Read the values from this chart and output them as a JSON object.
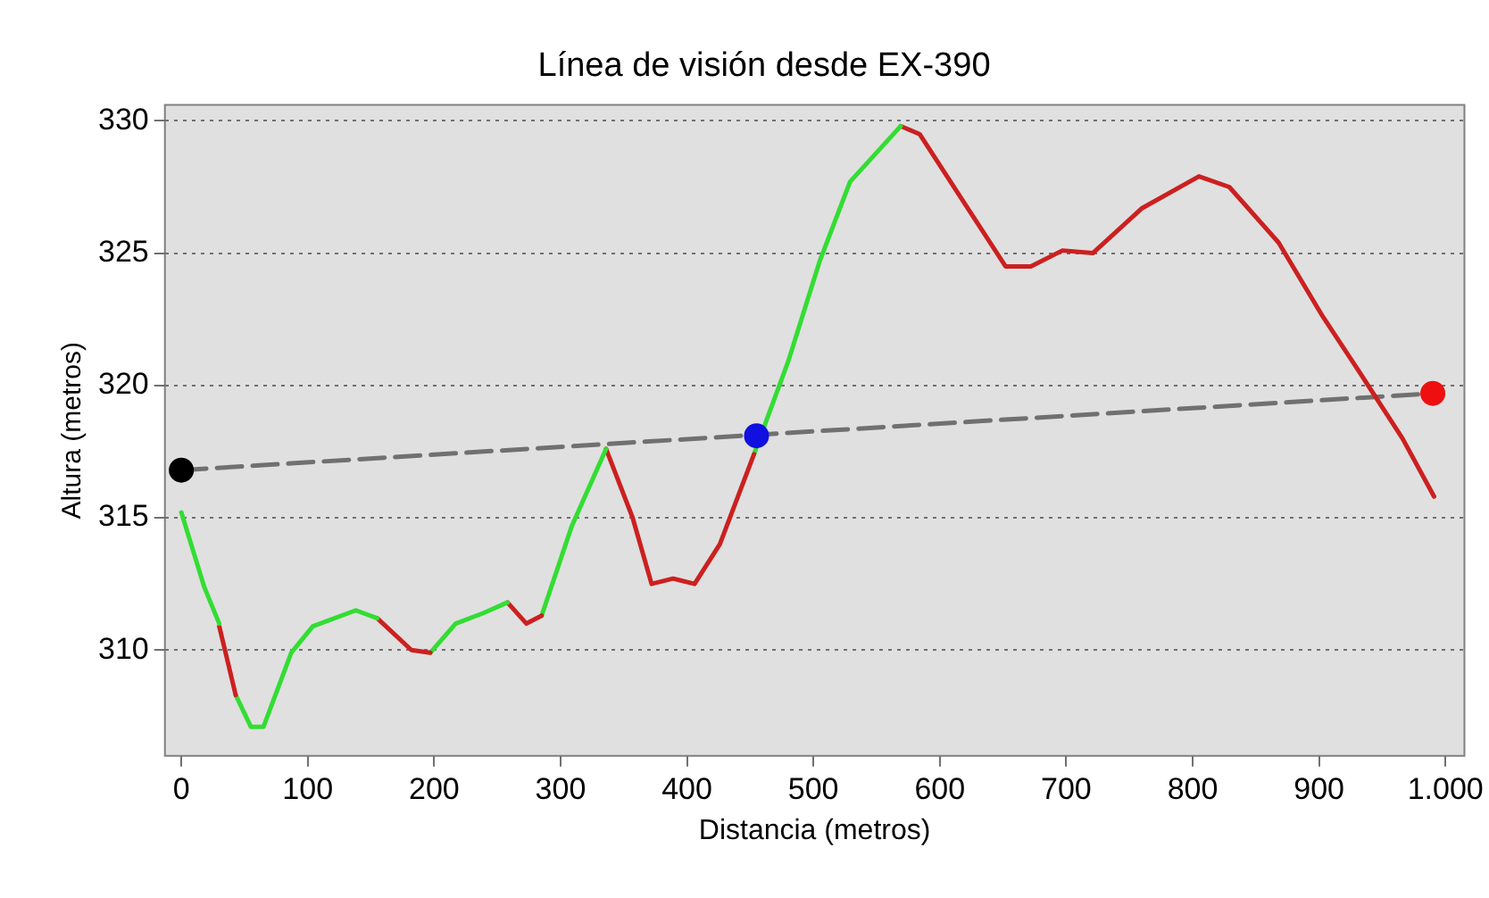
{
  "chart_data": {
    "type": "line",
    "title": "Línea de visión desde EX-390",
    "xlabel": "Distancia (metros)",
    "ylabel": "Altura (metros)",
    "xlim": [
      -13,
      1015
    ],
    "ylim": [
      306,
      330.6
    ],
    "xticks": [
      0,
      100,
      200,
      300,
      400,
      500,
      600,
      700,
      800,
      900,
      {
        "value": 1000,
        "label": "1.000"
      }
    ],
    "yticks": [
      310,
      315,
      320,
      325,
      330
    ],
    "grid": "y",
    "legend": false,
    "series": [
      {
        "type": "line",
        "color": "#33dd33",
        "marker": "none",
        "x": [
          0,
          18,
          30
        ],
        "values": [
          315.2,
          312.4,
          311.0
        ]
      },
      {
        "type": "line",
        "color": "#cc2020",
        "marker": "none",
        "x": [
          30,
          43
        ],
        "values": [
          310.9,
          308.3
        ]
      },
      {
        "type": "line",
        "color": "#33dd33",
        "marker": "none",
        "x": [
          43,
          55,
          65,
          87,
          104,
          138,
          155
        ],
        "values": [
          308.3,
          307.1,
          307.1,
          309.9,
          310.9,
          311.5,
          311.2
        ]
      },
      {
        "type": "line",
        "color": "#cc2020",
        "marker": "none",
        "x": [
          155,
          182,
          197
        ],
        "values": [
          311.2,
          310.0,
          309.9
        ]
      },
      {
        "type": "line",
        "color": "#33dd33",
        "marker": "none",
        "x": [
          197,
          217,
          239,
          258
        ],
        "values": [
          309.9,
          311.0,
          311.4,
          311.8
        ]
      },
      {
        "type": "line",
        "color": "#cc2020",
        "marker": "none",
        "x": [
          258,
          273,
          285
        ],
        "values": [
          311.8,
          311.0,
          311.3
        ]
      },
      {
        "type": "line",
        "color": "#33dd33",
        "marker": "none",
        "x": [
          285,
          309,
          336
        ],
        "values": [
          311.3,
          314.7,
          317.6
        ]
      },
      {
        "type": "line",
        "color": "#cc2020",
        "marker": "none",
        "x": [
          336,
          357,
          372,
          389,
          406,
          426,
          453
        ],
        "values": [
          317.6,
          315.0,
          312.5,
          312.7,
          312.5,
          314.0,
          317.4
        ]
      },
      {
        "type": "line",
        "color": "#33dd33",
        "marker": "none",
        "x": [
          453,
          480,
          505,
          529,
          569
        ],
        "values": [
          317.4,
          320.9,
          324.7,
          327.7,
          329.8
        ]
      },
      {
        "type": "line",
        "color": "#cc2020",
        "marker": "none",
        "x": [
          569,
          584,
          618,
          652,
          672,
          697,
          721,
          760,
          805,
          829,
          868,
          903,
          932,
          966,
          991
        ],
        "values": [
          329.8,
          329.5,
          327.0,
          324.5,
          324.5,
          325.1,
          325.0,
          326.7,
          327.9,
          327.5,
          325.4,
          322.6,
          320.5,
          318.0,
          315.8
        ]
      },
      {
        "type": "line",
        "color": "#707070",
        "marker": "none",
        "line_style": "dashed",
        "x": [
          0,
          990
        ],
        "values": [
          316.8,
          319.7
        ]
      },
      {
        "type": "scatter",
        "color": "#000000",
        "marker": "circle",
        "x": [
          0
        ],
        "values": [
          316.8
        ]
      },
      {
        "type": "scatter",
        "color": "#1010e0",
        "marker": "circle",
        "x": [
          455
        ],
        "values": [
          318.1
        ]
      },
      {
        "type": "scatter",
        "color": "#ee1010",
        "marker": "circle",
        "x": [
          990
        ],
        "values": [
          319.7
        ]
      }
    ]
  }
}
